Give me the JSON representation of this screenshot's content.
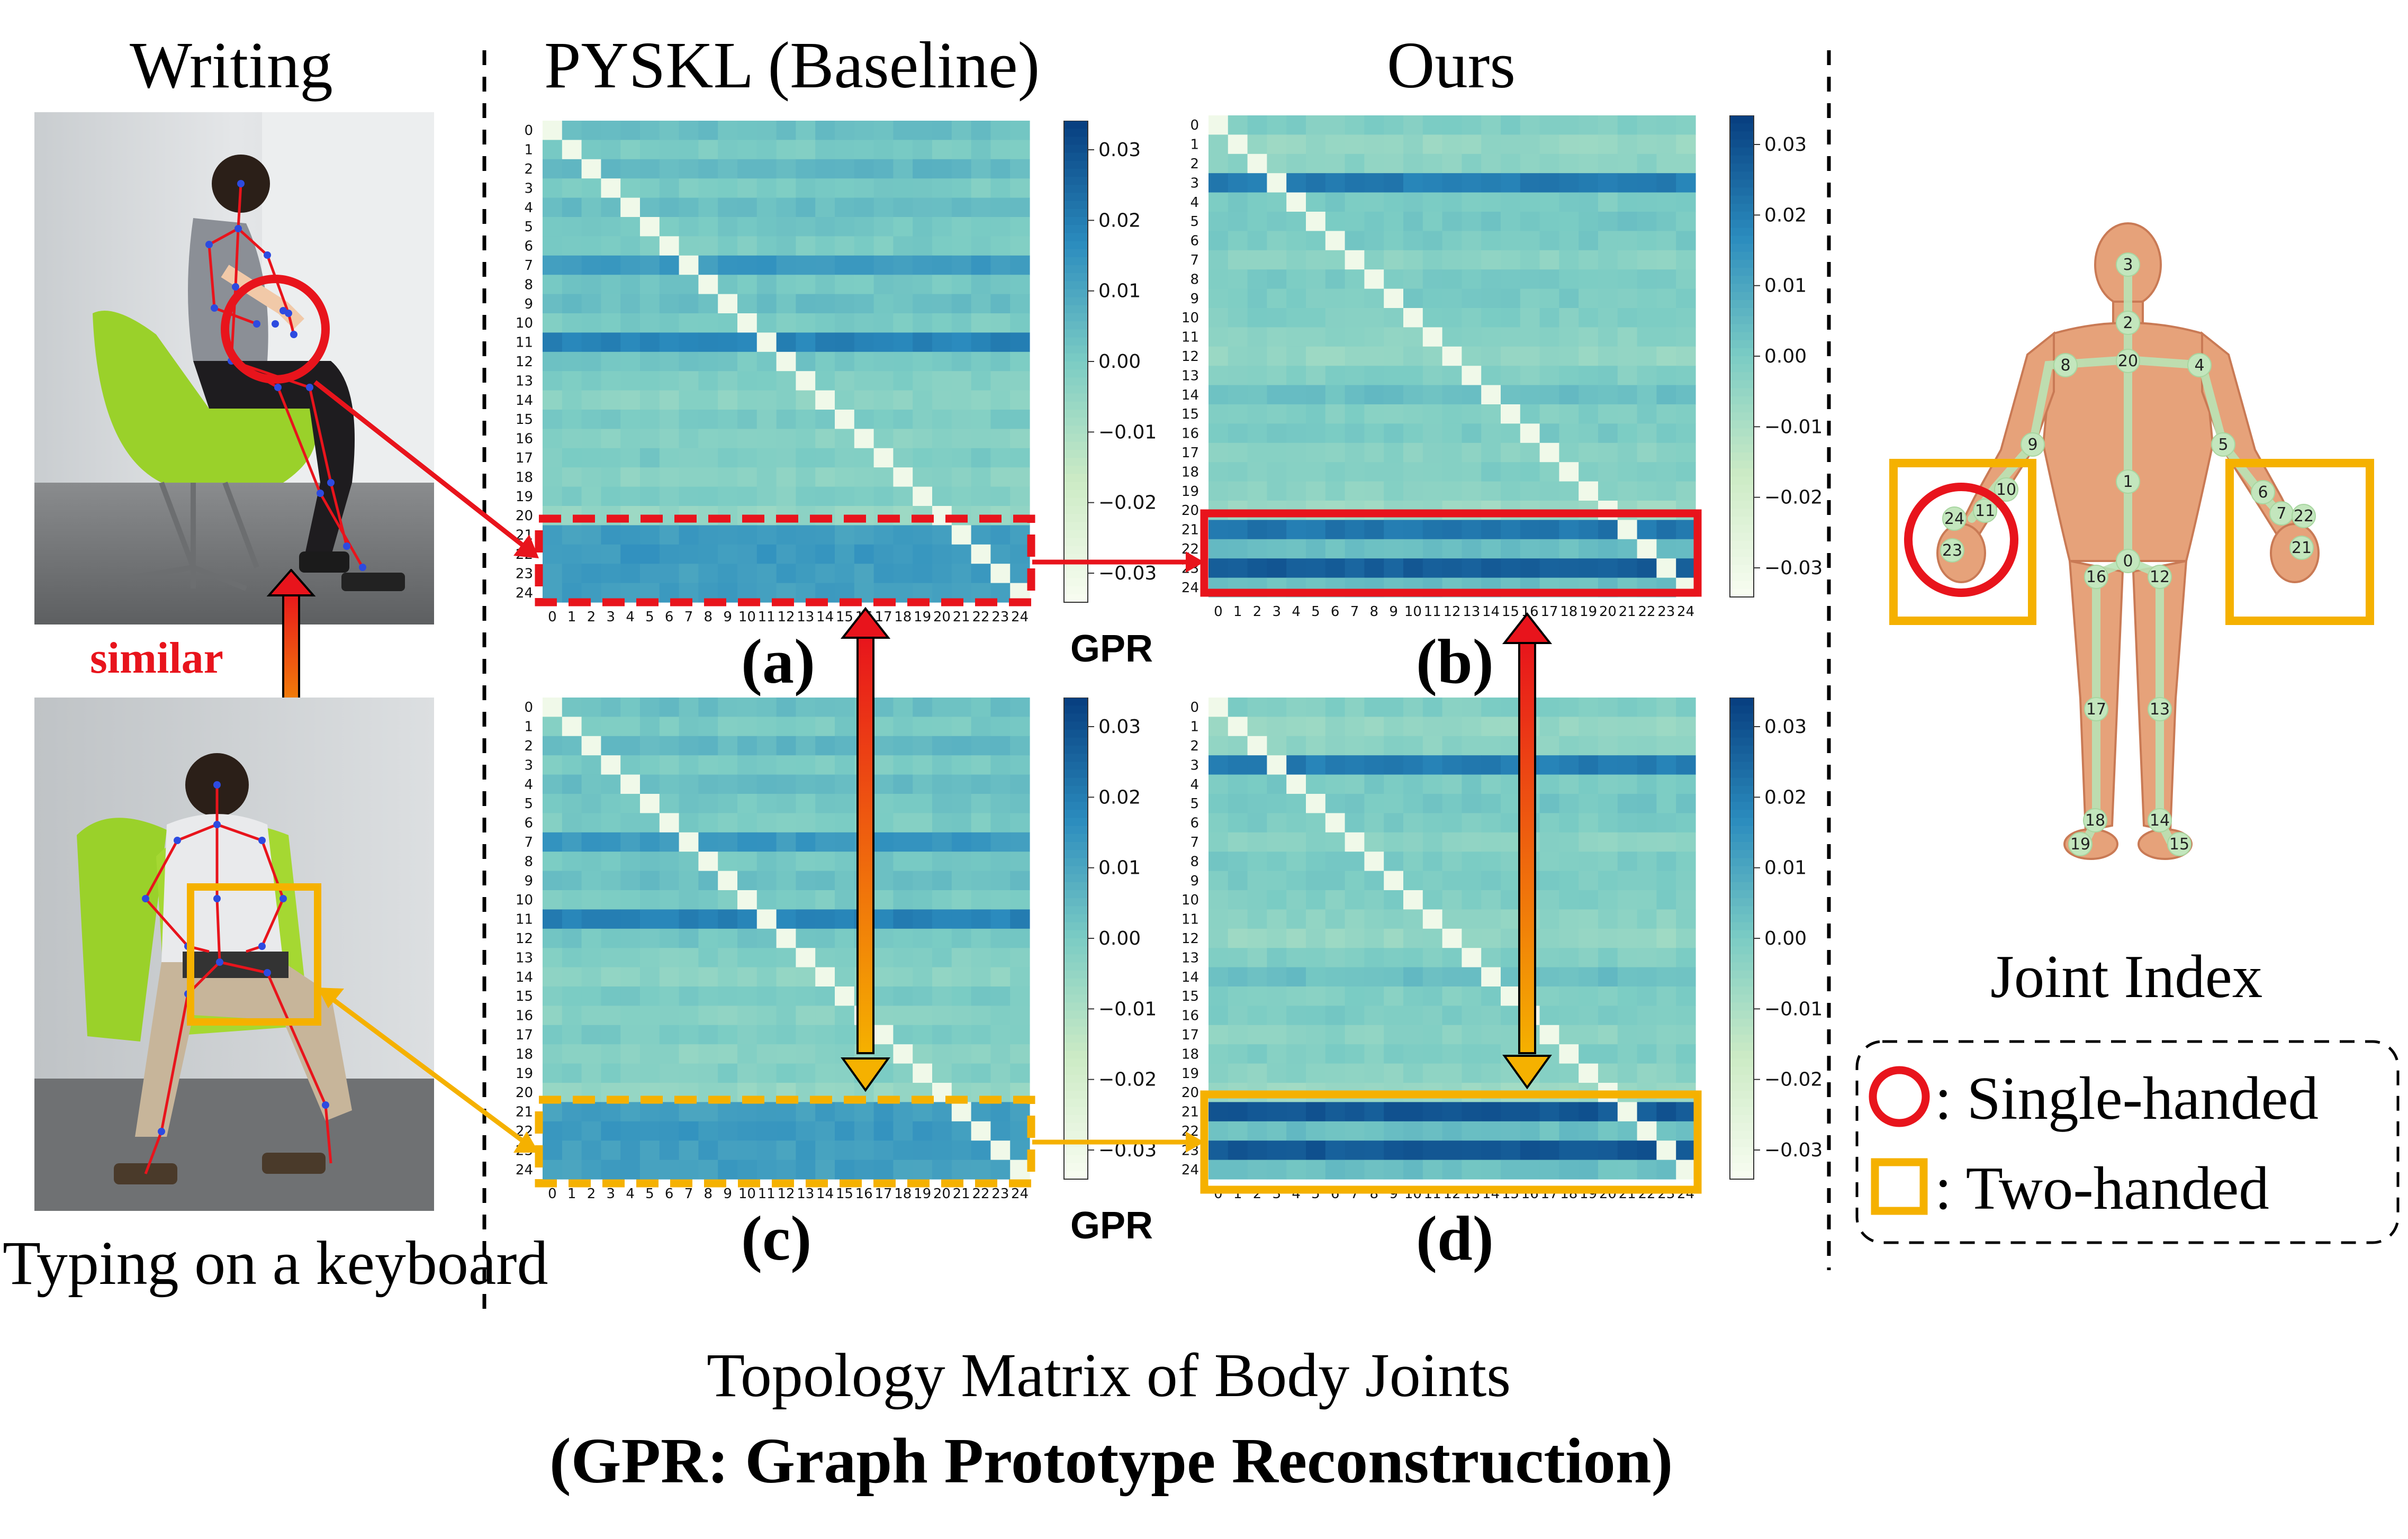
{
  "left": {
    "top_label": "Writing",
    "bottom_label": "Typing on a keyboard",
    "similar_label": "similar"
  },
  "columns": {
    "baseline_title": "PYSKL (Baseline)",
    "ours_title": "Ours"
  },
  "panels": {
    "a": "(a)",
    "b": "(b)",
    "c": "(c)",
    "d": "(d)",
    "colorbar_label": "GPR"
  },
  "colorbar_ticks": [
    "0.03",
    "0.02",
    "0.01",
    "0.00",
    "−0.01",
    "−0.02",
    "−0.03"
  ],
  "matrix_ticks": [
    "0",
    "1",
    "2",
    "3",
    "4",
    "5",
    "6",
    "7",
    "8",
    "9",
    "10",
    "11",
    "12",
    "13",
    "14",
    "15",
    "16",
    "17",
    "18",
    "19",
    "20",
    "21",
    "22",
    "23",
    "24"
  ],
  "right": {
    "joint_index_label": "Joint Index",
    "legend_single": ": Single-handed",
    "legend_two": ": Two-handed",
    "joint_numbers": [
      "0",
      "1",
      "2",
      "3",
      "4",
      "5",
      "6",
      "7",
      "8",
      "9",
      "10",
      "11",
      "12",
      "13",
      "14",
      "15",
      "16",
      "17",
      "18",
      "19",
      "20",
      "21",
      "22",
      "23",
      "24"
    ]
  },
  "caption": {
    "line1": "Topology Matrix of Body Joints",
    "line2": "(GPR: Graph Prototype Reconstruction)"
  },
  "colors": {
    "red": "#e8141c",
    "orange": "#f5b100",
    "cmap_low": "#f7fcf0",
    "cmap_mid": "#7bccc4",
    "cmap_high": "#084081"
  }
}
